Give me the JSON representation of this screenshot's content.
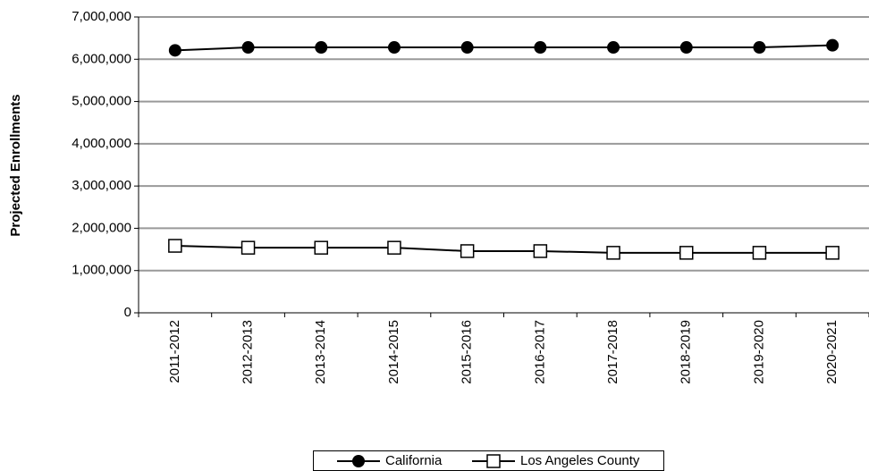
{
  "chart_data": {
    "type": "line",
    "y_label": "Projected Enrollments",
    "categories": [
      "2011-2012",
      "2012-2013",
      "2013-2014",
      "2014-2015",
      "2015-2016",
      "2016-2017",
      "2017-2018",
      "2018-2019",
      "2019-2020",
      "2020-2021"
    ],
    "series": [
      {
        "name": "California",
        "color": "#000000",
        "marker": "filled-circle",
        "values": [
          6210000,
          6280000,
          6280000,
          6280000,
          6280000,
          6280000,
          6280000,
          6280000,
          6280000,
          6330000
        ]
      },
      {
        "name": "Los Angeles County",
        "color": "#000000",
        "marker": "open-square",
        "values": [
          1585000,
          1540000,
          1540000,
          1540000,
          1460000,
          1460000,
          1420000,
          1420000,
          1420000,
          1420000
        ]
      }
    ],
    "ylim": [
      0,
      7000000
    ],
    "yticks": [
      0,
      {
        "value": 1000000,
        "label": "1,000,000"
      },
      {
        "value": 2000000,
        "label": "2,000,000"
      },
      {
        "value": 3000000,
        "label": "3,000,000"
      },
      {
        "value": 4000000,
        "label": "4,000,000"
      },
      {
        "value": 5000000,
        "label": "5,000,000"
      },
      {
        "value": 6000000,
        "label": "6,000,000"
      },
      {
        "value": 7000000,
        "label": "7,000,000"
      }
    ],
    "grid": true,
    "legend": "bottom"
  }
}
